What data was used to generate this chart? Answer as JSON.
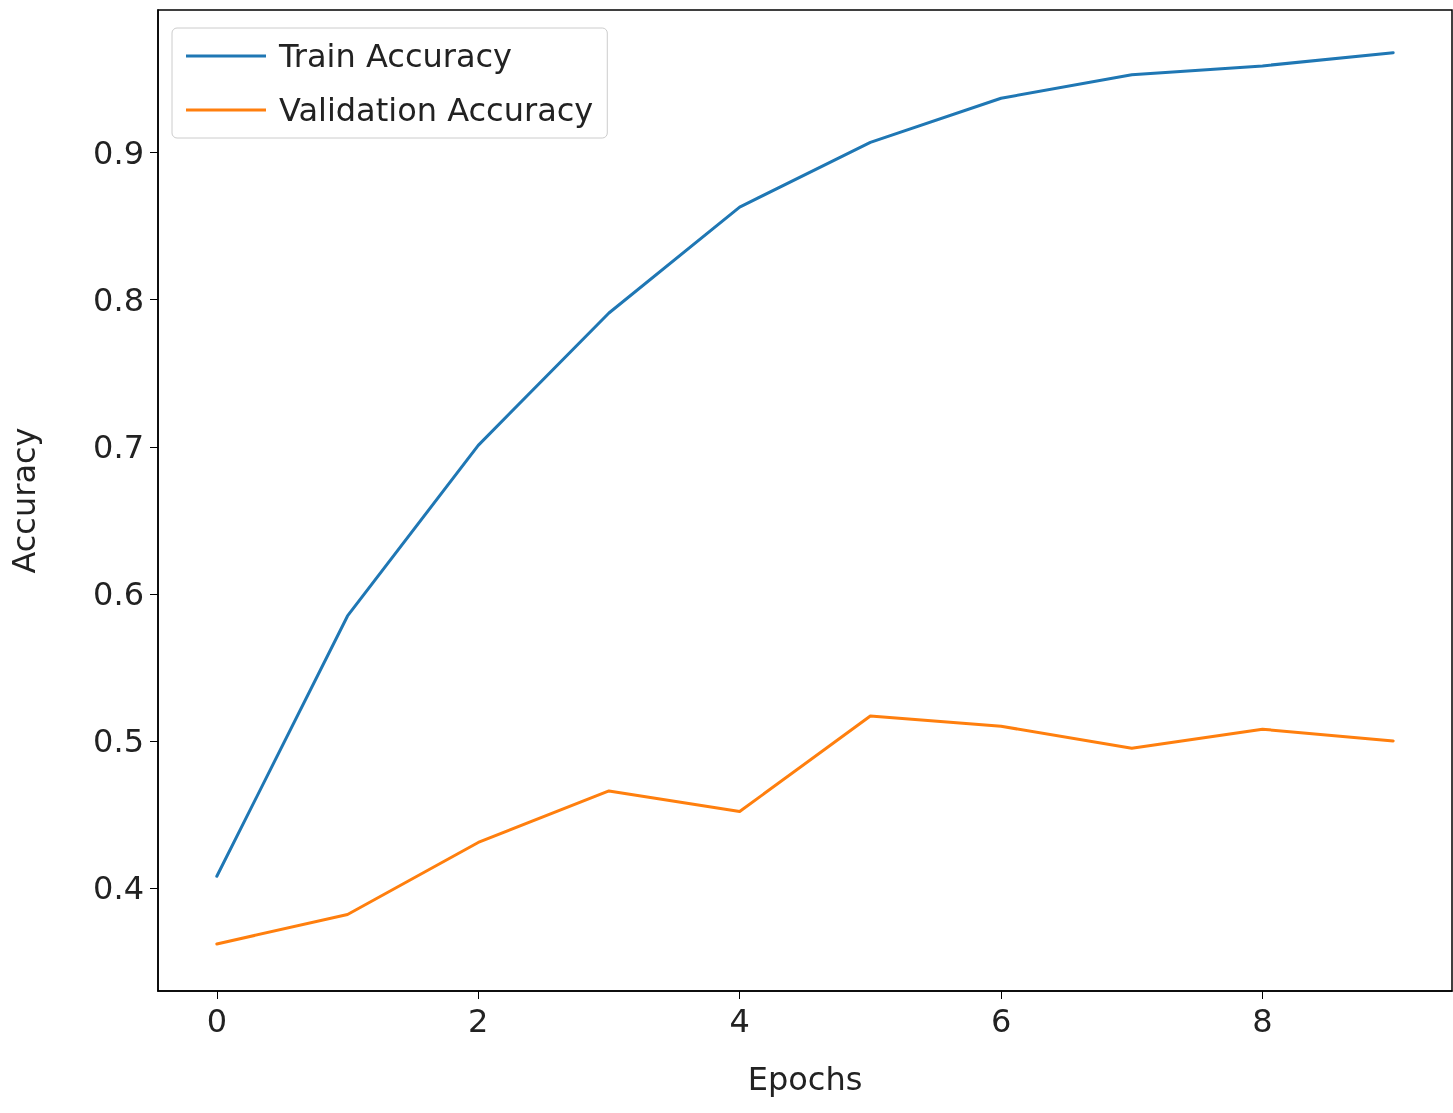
{
  "chart_data": {
    "type": "line",
    "xlabel": "Epochs",
    "ylabel": "Accuracy",
    "x": [
      0,
      1,
      2,
      3,
      4,
      5,
      6,
      7,
      8,
      9
    ],
    "series": [
      {
        "name": "Train Accuracy",
        "color": "#1f77b4",
        "values": [
          0.408,
          0.585,
          0.701,
          0.791,
          0.863,
          0.907,
          0.937,
          0.953,
          0.959,
          0.968
        ]
      },
      {
        "name": "Validation Accuracy",
        "color": "#ff7f0e",
        "values": [
          0.362,
          0.382,
          0.431,
          0.466,
          0.452,
          0.517,
          0.51,
          0.495,
          0.508,
          0.5
        ]
      }
    ],
    "xlim": [
      -0.45,
      9.45
    ],
    "xticks": [
      0,
      2,
      4,
      6,
      8
    ],
    "ylim": [
      0.33,
      0.997
    ],
    "yticks": [
      0.4,
      0.5,
      0.6,
      0.7,
      0.8,
      0.9
    ],
    "grid": false,
    "legend": "top left",
    "marker": "none",
    "line_style": "solid"
  }
}
